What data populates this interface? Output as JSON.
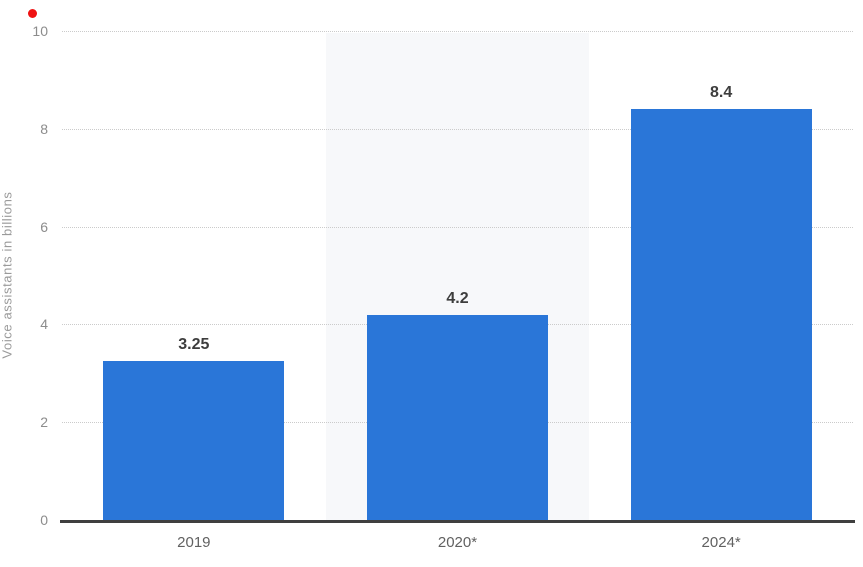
{
  "chart_data": {
    "type": "bar",
    "title": "",
    "categories": [
      "2019",
      "2020*",
      "2024*"
    ],
    "values": [
      3.25,
      4.2,
      8.4
    ],
    "value_labels": [
      "3.25",
      "4.2",
      "8.4"
    ],
    "series": [
      {
        "name": "Voice assistants",
        "values": [
          3.25,
          4.2,
          8.4
        ]
      }
    ],
    "xlabel": "",
    "ylabel": "Voice assistants in billions",
    "ylim": [
      0,
      10
    ],
    "yticks": [
      0,
      2,
      4,
      6,
      8,
      10
    ],
    "grid": "horizontal-dotted",
    "legend": "none",
    "highlight_band_category_index": 1,
    "colors": {
      "bar": "#2a76d8",
      "highlight_band": "#f7f8fa",
      "gridline": "#cbcbcb",
      "axis_line": "#3f3f3f",
      "tick_label": "#8c8c8c",
      "x_label": "#616161",
      "value_label": "#3d3d3d",
      "y_axis_title": "#9a9a9a",
      "background": "#ffffff"
    }
  },
  "click_marker": {
    "color": "#ef1212"
  }
}
